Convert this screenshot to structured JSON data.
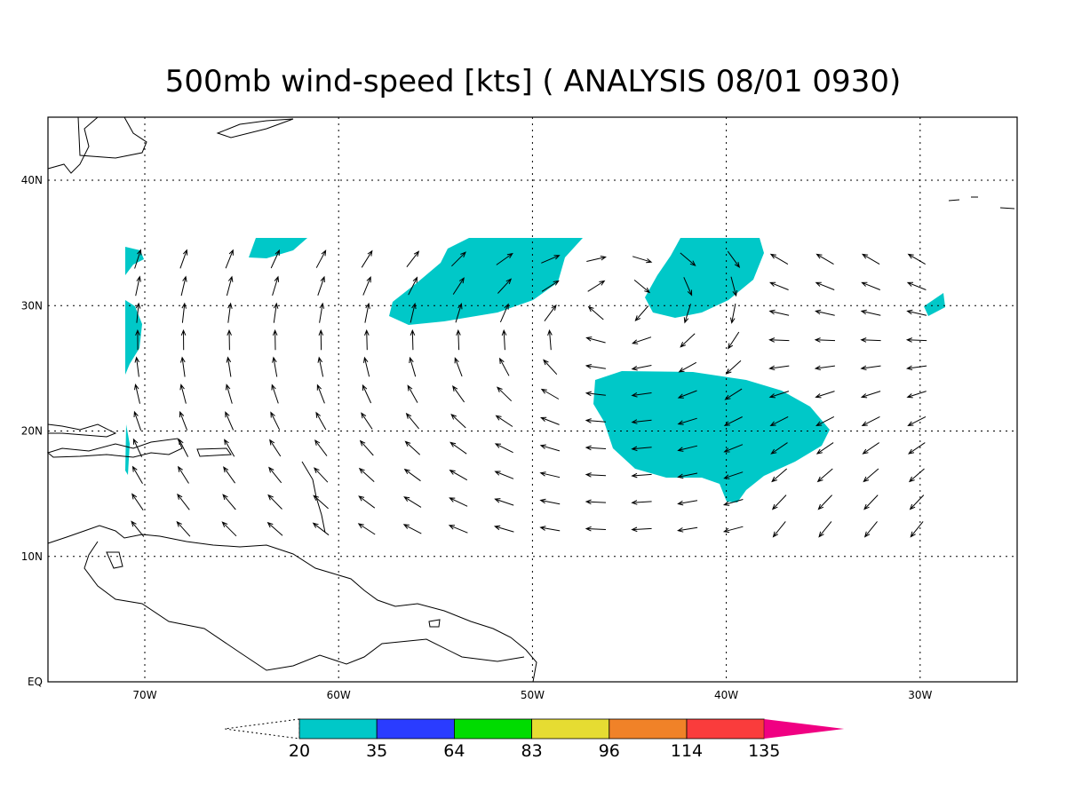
{
  "title": "500mb wind-speed [kts] ( ANALYSIS 08/01 0930)",
  "map": {
    "lat_labels": [
      "40N",
      "30N",
      "20N",
      "10N",
      "EQ"
    ],
    "lon_labels": [
      "70W",
      "60W",
      "50W",
      "40W",
      "30W"
    ]
  },
  "colorbar": {
    "labels": [
      "20",
      "35",
      "64",
      "83",
      "96",
      "114",
      "135"
    ],
    "colors": [
      "#00c8c8",
      "#2a3cff",
      "#00dc00",
      "#e6dc32",
      "#f08228",
      "#fa3c3c",
      "#f00082"
    ]
  }
}
